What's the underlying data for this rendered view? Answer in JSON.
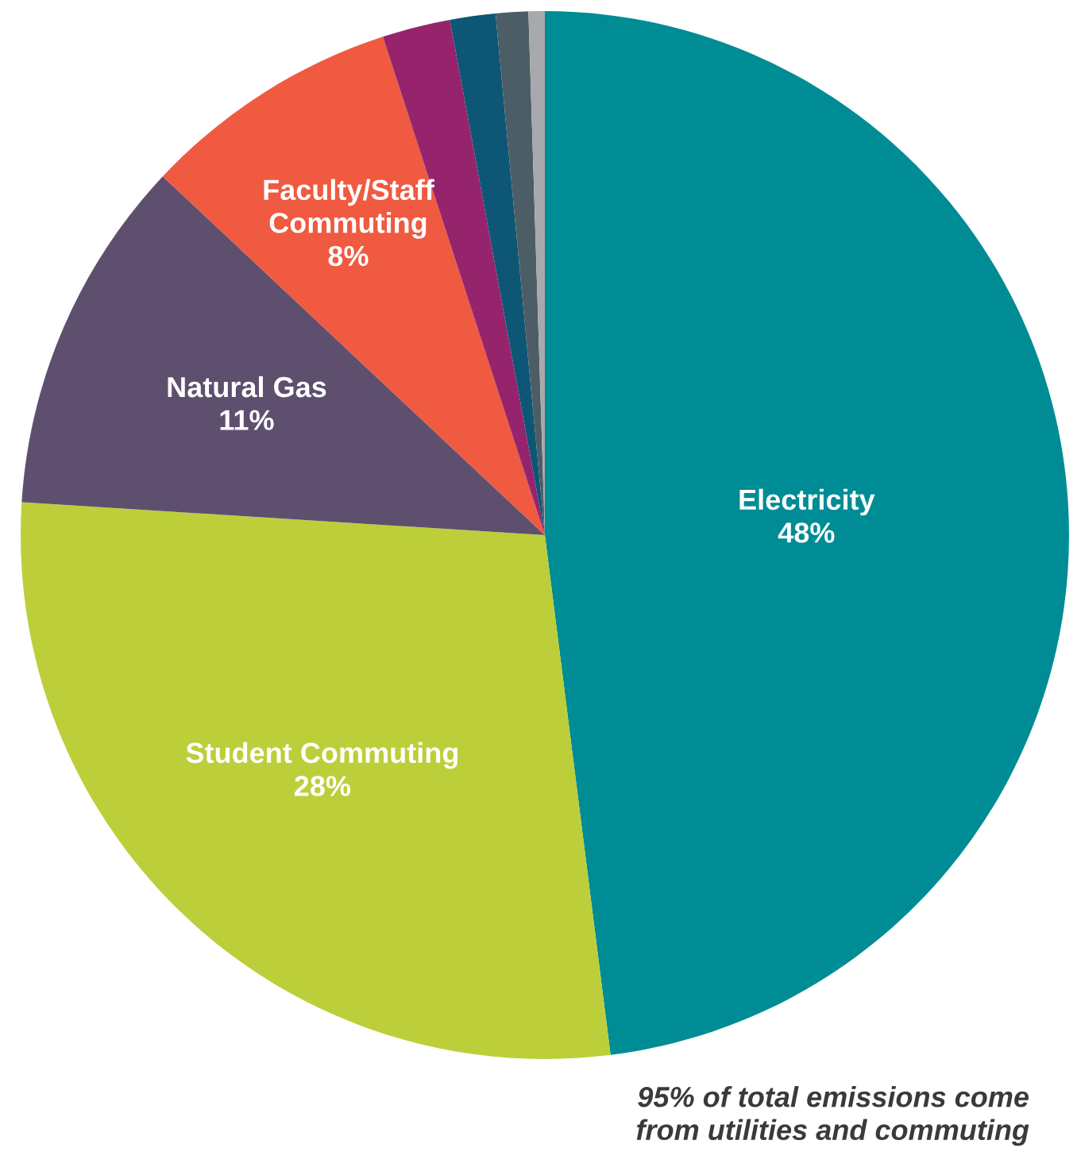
{
  "chart_data": {
    "type": "pie",
    "categories": [
      "Electricity",
      "Student Commuting",
      "Natural Gas",
      "Faculty/Staff\nCommuting",
      null,
      null,
      null,
      null
    ],
    "values": [
      48,
      28,
      11,
      8,
      2.1,
      1.4,
      1.0,
      0.5
    ],
    "colors": [
      "#008c95",
      "#bccf3a",
      "#5e4f6f",
      "#ef5a40",
      "#95246d",
      "#0e5675",
      "#4d5d66",
      "#a7a9ac"
    ],
    "value_labels": [
      "48%",
      "28%",
      "11%",
      "8%",
      null,
      null,
      null,
      null
    ],
    "annotations": [
      "95% of total emissions come\nfrom utilities and commuting"
    ],
    "legend": false
  }
}
